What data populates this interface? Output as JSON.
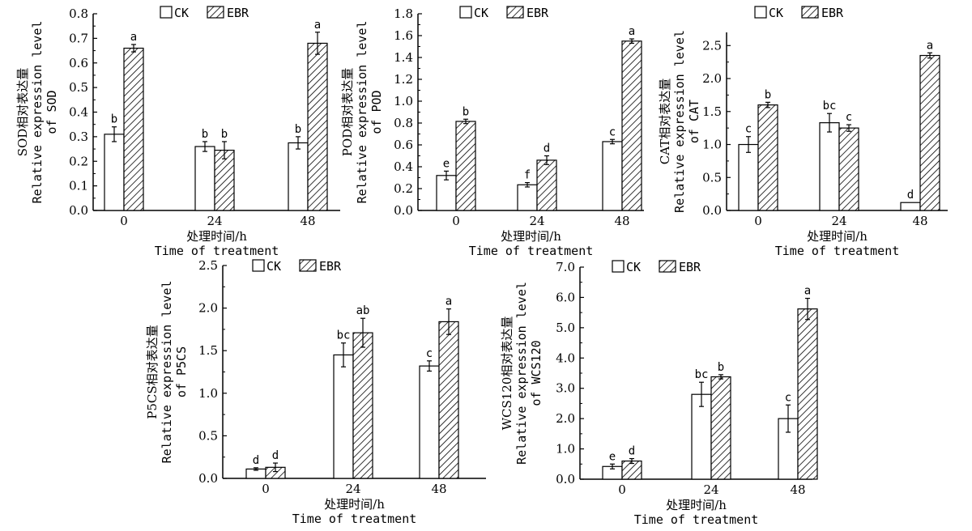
{
  "legend": {
    "ck": "CK",
    "ebr": "EBR"
  },
  "colors": {
    "ck_fill": "#ffffff",
    "ebr_hatch": "#000000",
    "stroke": "#000000"
  },
  "chart_data": [
    {
      "type": "bar",
      "gene": "SOD",
      "ylabel_cn": "SOD相对表达量",
      "ylabel_en1": "Relative expression level",
      "ylabel_en2": "of SOD",
      "xlabel_cn": "处理时间/h",
      "xlabel_en": "Time of treatment",
      "categories": [
        "0",
        "24",
        "48"
      ],
      "ylim": [
        0,
        0.8
      ],
      "yticks": [
        "0.0",
        "0.1",
        "0.2",
        "0.3",
        "0.4",
        "0.5",
        "0.6",
        "0.7",
        "0.8"
      ],
      "series": [
        {
          "name": "CK",
          "values": [
            0.31,
            0.26,
            0.275
          ],
          "errors": [
            0.03,
            0.02,
            0.025
          ],
          "labels": [
            "b",
            "b",
            "b"
          ]
        },
        {
          "name": "EBR",
          "values": [
            0.66,
            0.245,
            0.68
          ],
          "errors": [
            0.015,
            0.035,
            0.045
          ],
          "labels": [
            "a",
            "b",
            "a"
          ]
        }
      ]
    },
    {
      "type": "bar",
      "gene": "POD",
      "ylabel_cn": "POD相对表达量",
      "ylabel_en1": "Relative expression level",
      "ylabel_en2": "of POD",
      "xlabel_cn": "处理时间/h",
      "xlabel_en": "Time of treatment",
      "categories": [
        "0",
        "24",
        "48"
      ],
      "ylim": [
        0,
        1.8
      ],
      "yticks": [
        "0.0",
        "0.2",
        "0.4",
        "0.6",
        "0.8",
        "1.0",
        "1.2",
        "1.4",
        "1.6",
        "1.8"
      ],
      "series": [
        {
          "name": "CK",
          "values": [
            0.32,
            0.235,
            0.63
          ],
          "errors": [
            0.04,
            0.02,
            0.02
          ],
          "labels": [
            "e",
            "f",
            "c"
          ]
        },
        {
          "name": "EBR",
          "values": [
            0.815,
            0.46,
            1.55
          ],
          "errors": [
            0.02,
            0.04,
            0.02
          ],
          "labels": [
            "b",
            "d",
            "a"
          ]
        }
      ]
    },
    {
      "type": "bar",
      "gene": "CAT",
      "ylabel_cn": "CAT相对表达量",
      "ylabel_en1": "Relative expression level",
      "ylabel_en2": "of CAT",
      "xlabel_cn": "处理时间/h",
      "xlabel_en": "Time of treatment",
      "categories": [
        "0",
        "24",
        "48"
      ],
      "ylim": [
        0,
        2.7
      ],
      "yticks": [
        "0.0",
        "0.5",
        "1.0",
        "1.5",
        "2.0",
        "2.5"
      ],
      "series": [
        {
          "name": "CK",
          "values": [
            1.0,
            1.33,
            0.12
          ],
          "errors": [
            0.12,
            0.14,
            0.0
          ],
          "labels": [
            "c",
            "bc",
            "d"
          ]
        },
        {
          "name": "EBR",
          "values": [
            1.6,
            1.25,
            2.35
          ],
          "errors": [
            0.04,
            0.05,
            0.04
          ],
          "labels": [
            "b",
            "c",
            "a"
          ]
        }
      ]
    },
    {
      "type": "bar",
      "gene": "P5CS",
      "ylabel_cn": "P5CS相对表达量",
      "ylabel_en1": "Relative expression level",
      "ylabel_en2": "of P5CS",
      "xlabel_cn": "处理时间/h",
      "xlabel_en": "Time of treatment",
      "categories": [
        "0",
        "24",
        "48"
      ],
      "ylim": [
        0,
        2.5
      ],
      "yticks": [
        "0.0",
        "0.5",
        "1.0",
        "1.5",
        "2.0",
        "2.5"
      ],
      "series": [
        {
          "name": "CK",
          "values": [
            0.11,
            1.45,
            1.32
          ],
          "errors": [
            0.015,
            0.14,
            0.06
          ],
          "labels": [
            "d",
            "bc",
            "c"
          ]
        },
        {
          "name": "EBR",
          "values": [
            0.13,
            1.71,
            1.84
          ],
          "errors": [
            0.05,
            0.17,
            0.15
          ],
          "labels": [
            "d",
            "ab",
            "a"
          ]
        }
      ]
    },
    {
      "type": "bar",
      "gene": "WCS120",
      "ylabel_cn": "WCS120相对表达量",
      "ylabel_en1": "Relative expression level",
      "ylabel_en2": "of WCS120",
      "xlabel_cn": "处理时间/h",
      "xlabel_en": "Time of treatment",
      "categories": [
        "0",
        "24",
        "48"
      ],
      "ylim": [
        0,
        7.0
      ],
      "yticks": [
        "0.0",
        "1.0",
        "2.0",
        "3.0",
        "4.0",
        "5.0",
        "6.0",
        "7.0"
      ],
      "series": [
        {
          "name": "CK",
          "values": [
            0.42,
            2.8,
            2.0
          ],
          "errors": [
            0.08,
            0.4,
            0.45
          ],
          "labels": [
            "e",
            "bc",
            "c"
          ]
        },
        {
          "name": "EBR",
          "values": [
            0.6,
            3.38,
            5.62
          ],
          "errors": [
            0.08,
            0.07,
            0.35
          ],
          "labels": [
            "d",
            "b",
            "a"
          ]
        }
      ]
    }
  ]
}
